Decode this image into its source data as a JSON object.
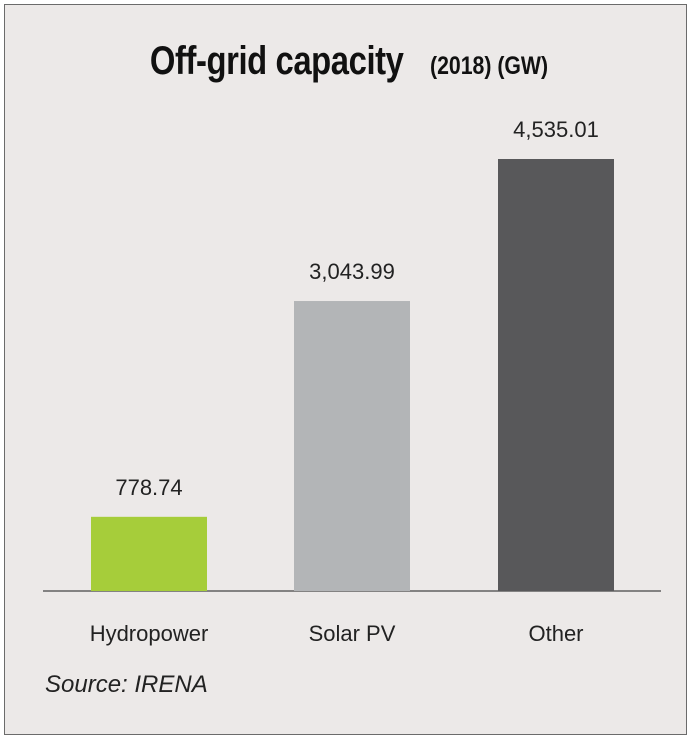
{
  "title": {
    "main": "Off-grid capacity",
    "suffix": "(2018) (GW)"
  },
  "source": "Source: IRENA",
  "chart_data": {
    "type": "bar",
    "title": "Off-grid capacity (2018) (GW)",
    "categories": [
      "Hydropower",
      "Solar PV",
      "Other"
    ],
    "values": [
      778.74,
      3043.99,
      4535.01
    ],
    "value_labels": [
      "778.74",
      "3,043.99",
      "4,535.01"
    ],
    "colors": [
      "#a6cd3a",
      "#b3b5b7",
      "#58585a"
    ],
    "xlabel": "",
    "ylabel": "",
    "ylim": [
      0,
      4535.01
    ],
    "grid": false,
    "legend": "none"
  }
}
